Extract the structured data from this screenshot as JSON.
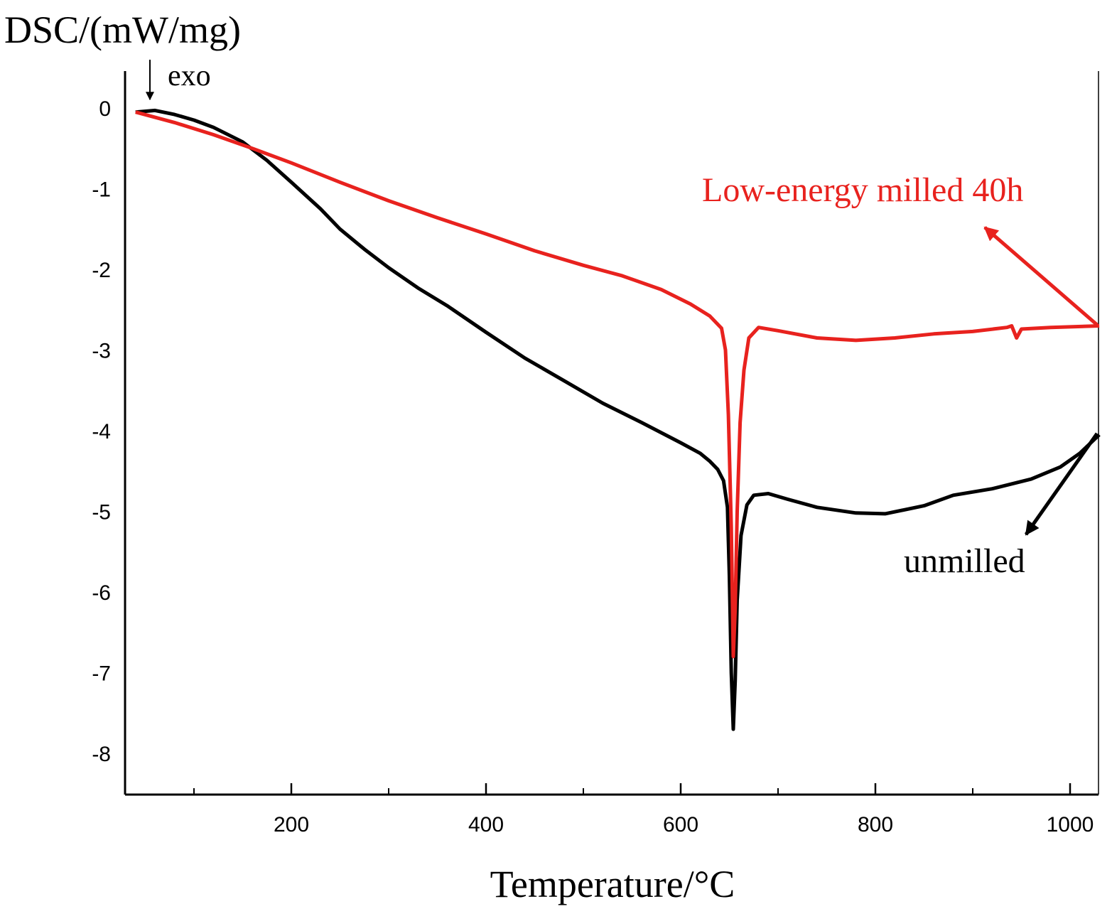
{
  "chart_data": {
    "type": "line",
    "title": "",
    "xlabel": "Temperature/°C",
    "ylabel": "DSC/(mW/mg)",
    "xlim": [
      30,
      1030
    ],
    "ylim": [
      -8.5,
      0.5
    ],
    "xticks_major": [
      200,
      400,
      600,
      800,
      1000
    ],
    "xticks_minor": [
      100,
      300,
      500,
      700,
      900
    ],
    "yticks": [
      0,
      -1,
      -2,
      -3,
      -4,
      -5,
      -6,
      -7,
      -8
    ],
    "xtick_labels": [
      "200",
      "400",
      "600",
      "800",
      "1000"
    ],
    "ytick_labels": [
      "0",
      "-1",
      "-2",
      "-3",
      "-4",
      "-5",
      "-6",
      "-7",
      "-8"
    ],
    "grid": false,
    "annotations": {
      "exo": "exo",
      "red_series_label": "Low-energy milled 40h",
      "black_series_label": "unmilled"
    },
    "series": [
      {
        "name": "unmilled",
        "color": "#000000",
        "points": [
          [
            40,
            -0.05
          ],
          [
            60,
            -0.03
          ],
          [
            80,
            -0.08
          ],
          [
            100,
            -0.15
          ],
          [
            120,
            -0.24
          ],
          [
            150,
            -0.42
          ],
          [
            175,
            -0.65
          ],
          [
            200,
            -0.92
          ],
          [
            230,
            -1.25
          ],
          [
            250,
            -1.5
          ],
          [
            275,
            -1.75
          ],
          [
            300,
            -1.98
          ],
          [
            330,
            -2.23
          ],
          [
            360,
            -2.45
          ],
          [
            400,
            -2.78
          ],
          [
            440,
            -3.1
          ],
          [
            480,
            -3.38
          ],
          [
            520,
            -3.66
          ],
          [
            560,
            -3.9
          ],
          [
            600,
            -4.15
          ],
          [
            620,
            -4.28
          ],
          [
            630,
            -4.38
          ],
          [
            638,
            -4.48
          ],
          [
            644,
            -4.62
          ],
          [
            648,
            -4.95
          ],
          [
            650,
            -5.8
          ],
          [
            652,
            -7.0
          ],
          [
            654,
            -7.7
          ],
          [
            656,
            -7.1
          ],
          [
            658,
            -6.1
          ],
          [
            662,
            -5.3
          ],
          [
            668,
            -4.92
          ],
          [
            675,
            -4.8
          ],
          [
            690,
            -4.78
          ],
          [
            710,
            -4.85
          ],
          [
            740,
            -4.95
          ],
          [
            780,
            -5.02
          ],
          [
            810,
            -5.03
          ],
          [
            850,
            -4.93
          ],
          [
            880,
            -4.8
          ],
          [
            920,
            -4.72
          ],
          [
            960,
            -4.6
          ],
          [
            990,
            -4.45
          ],
          [
            1010,
            -4.28
          ],
          [
            1030,
            -4.05
          ]
        ]
      },
      {
        "name": "Low-energy milled 40h",
        "color": "#e8221e",
        "points": [
          [
            40,
            -0.05
          ],
          [
            80,
            -0.18
          ],
          [
            120,
            -0.33
          ],
          [
            160,
            -0.5
          ],
          [
            200,
            -0.68
          ],
          [
            250,
            -0.92
          ],
          [
            300,
            -1.15
          ],
          [
            350,
            -1.36
          ],
          [
            400,
            -1.56
          ],
          [
            450,
            -1.77
          ],
          [
            500,
            -1.95
          ],
          [
            540,
            -2.08
          ],
          [
            580,
            -2.25
          ],
          [
            610,
            -2.43
          ],
          [
            630,
            -2.58
          ],
          [
            642,
            -2.73
          ],
          [
            646,
            -3.0
          ],
          [
            649,
            -3.8
          ],
          [
            652,
            -5.2
          ],
          [
            654,
            -6.8
          ],
          [
            656,
            -6.2
          ],
          [
            658,
            -5.0
          ],
          [
            661,
            -3.9
          ],
          [
            665,
            -3.25
          ],
          [
            670,
            -2.85
          ],
          [
            680,
            -2.72
          ],
          [
            700,
            -2.76
          ],
          [
            740,
            -2.85
          ],
          [
            780,
            -2.88
          ],
          [
            820,
            -2.85
          ],
          [
            860,
            -2.8
          ],
          [
            900,
            -2.77
          ],
          [
            935,
            -2.72
          ],
          [
            940,
            -2.7
          ],
          [
            945,
            -2.85
          ],
          [
            950,
            -2.74
          ],
          [
            980,
            -2.72
          ],
          [
            1030,
            -2.7
          ]
        ]
      }
    ]
  }
}
